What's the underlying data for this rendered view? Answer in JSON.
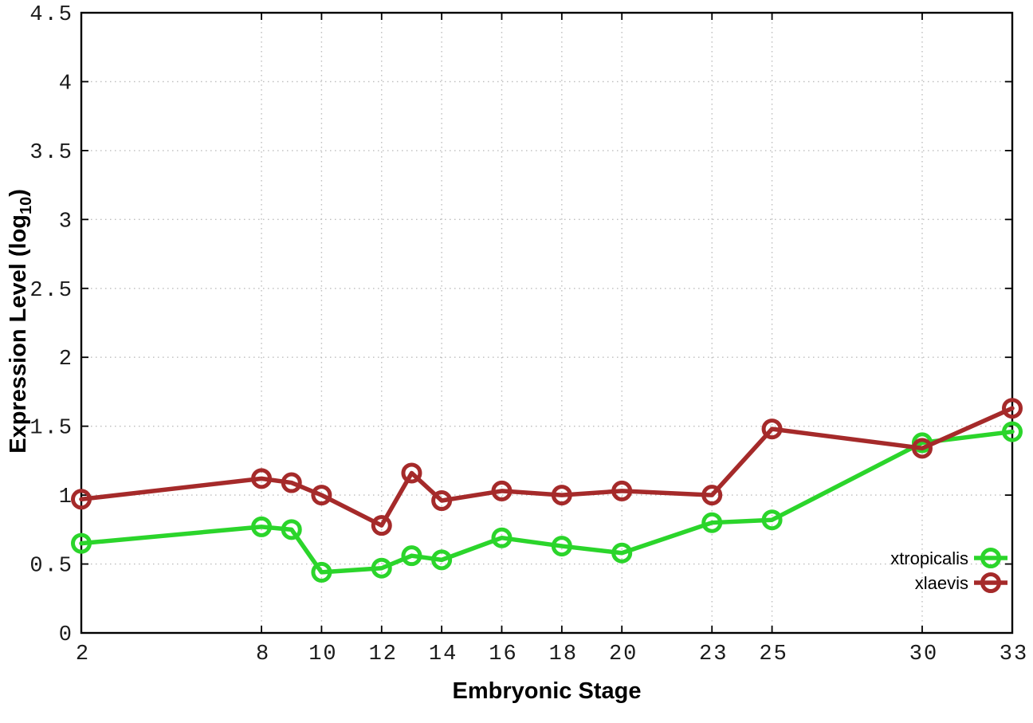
{
  "chart_data": {
    "type": "line",
    "title": "",
    "xlabel": "Embryonic Stage",
    "ylabel_parts": {
      "prefix": "Expression Level (log",
      "sub": "10",
      "suffix": ")"
    },
    "x": [
      2,
      8,
      9,
      10,
      12,
      13,
      14,
      16,
      18,
      20,
      23,
      25,
      30,
      33
    ],
    "series": [
      {
        "name": "xtropicalis",
        "color": "#2bd52b",
        "values": [
          0.65,
          0.77,
          0.75,
          0.44,
          0.47,
          0.56,
          0.53,
          0.69,
          0.63,
          0.58,
          0.8,
          0.82,
          1.38,
          1.46
        ]
      },
      {
        "name": "xlaevis",
        "color": "#a52a2a",
        "values": [
          0.97,
          1.12,
          1.09,
          1.0,
          0.78,
          1.16,
          0.96,
          1.03,
          1.0,
          1.03,
          1.0,
          1.48,
          1.34,
          1.63
        ]
      }
    ],
    "xticks": [
      2,
      8,
      10,
      12,
      14,
      16,
      18,
      20,
      23,
      25,
      30,
      33
    ],
    "yticks": [
      "0",
      "0.5",
      "1",
      "1.5",
      "2",
      "2.5",
      "3",
      "3.5",
      "4",
      "4.5"
    ],
    "ytick_values": [
      0,
      0.5,
      1,
      1.5,
      2,
      2.5,
      3,
      3.5,
      4,
      4.5
    ],
    "xlim": [
      2,
      33
    ],
    "ylim": [
      0,
      4.5
    ],
    "grid": true,
    "legend_position": "bottom-right",
    "colors": {
      "grid": "#bdbdbd",
      "axis": "#000000",
      "tick_text": "#1a1a1a",
      "background": "#ffffff"
    }
  }
}
